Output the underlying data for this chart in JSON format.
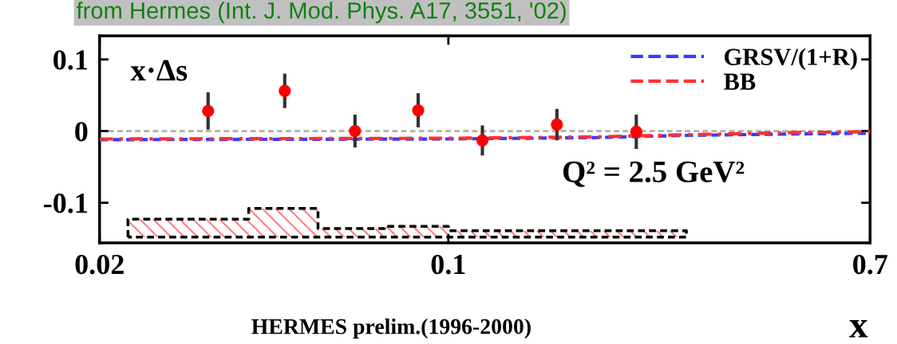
{
  "chart_data": {
    "type": "scatter",
    "title": "from Hermes (Int. J. Mod. Phys. A17, 3551, '02)",
    "xlabel": "x",
    "annotations": [
      "x·Δs",
      "Q² = 2.5 GeV²",
      "HERMES prelim.(1996-2000)"
    ],
    "log": "x",
    "xlim": [
      0.02,
      0.7
    ],
    "xticks": [
      0.02,
      0.1,
      0.7
    ],
    "ylim": [
      -0.156,
      0.133
    ],
    "yticks": [
      0.1,
      0,
      -0.1
    ],
    "grid": false,
    "legend": "top right",
    "ref_lines": [
      {
        "axis": "y",
        "value": 0,
        "color": "#b0b0b0",
        "line_style": "dashed"
      }
    ],
    "series": [
      {
        "color": "#ff0000",
        "marker": "circle",
        "x": [
          0.033,
          0.047,
          0.065,
          0.087,
          0.117,
          0.165,
          0.238
        ],
        "values": [
          0.028,
          0.056,
          0.0,
          0.029,
          -0.013,
          0.009,
          -0.001
        ],
        "errors": [
          0.026,
          0.024,
          0.023,
          0.024,
          0.021,
          0.022,
          0.024
        ]
      },
      {
        "type": "line",
        "name": "GRSV/(1+R)",
        "color": "#3a3aff",
        "line_style": "dashed",
        "x": [
          0.02,
          0.1,
          0.2,
          0.3,
          0.5,
          0.7
        ],
        "values": [
          -0.012,
          -0.011,
          -0.009,
          -0.006,
          -0.004,
          -0.003
        ]
      },
      {
        "type": "line",
        "name": "BB",
        "color": "#ff3030",
        "line_style": "dashdot",
        "x": [
          0.02,
          0.1,
          0.2,
          0.3,
          0.5,
          0.7
        ],
        "values": [
          -0.011,
          -0.01,
          -0.008,
          -0.005,
          -0.002,
          -0.001
        ]
      },
      {
        "type": "area",
        "color": "#ff8080",
        "line_style": "dashed",
        "x": [
          0.0228,
          0.0228,
          0.0398,
          0.0398,
          0.0548,
          0.0548,
          0.0745,
          0.0745,
          0.1,
          0.1,
          0.3,
          0.3
        ],
        "values": [
          -0.148,
          -0.123,
          -0.123,
          -0.108,
          -0.108,
          -0.136,
          -0.136,
          -0.133,
          -0.133,
          -0.139,
          -0.139,
          -0.148
        ]
      }
    ]
  }
}
